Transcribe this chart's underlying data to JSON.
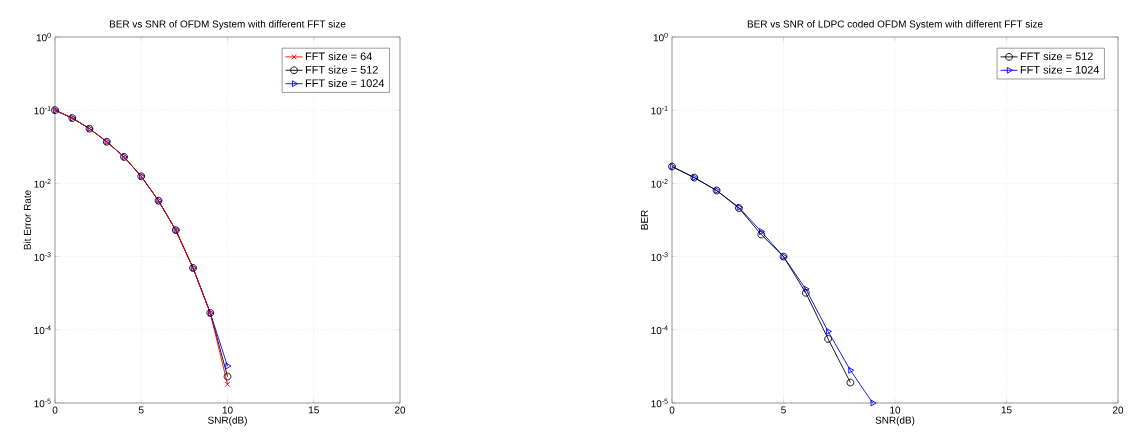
{
  "chart_data": [
    {
      "type": "line",
      "title": "BER vs SNR of OFDM System with different FFT size",
      "xlabel": "SNR(dB)",
      "ylabel": "Bit Error Rate",
      "x": [
        0,
        1,
        2,
        3,
        4,
        5,
        6,
        7,
        8,
        9,
        10
      ],
      "series": [
        {
          "name": "FFT size = 64",
          "color": "#ff0000",
          "marker": "cross",
          "values": [
            0.1,
            0.078,
            0.056,
            0.037,
            0.023,
            0.0125,
            0.0058,
            0.0023,
            0.0007,
            0.00017,
            1.8e-05
          ]
        },
        {
          "name": "FFT size = 512",
          "color": "#000000",
          "marker": "circle",
          "values": [
            0.1,
            0.078,
            0.056,
            0.037,
            0.023,
            0.0125,
            0.0058,
            0.0023,
            0.0007,
            0.00017,
            2.3e-05
          ]
        },
        {
          "name": "FFT size = 1024",
          "color": "#0000ff",
          "marker": "triangle",
          "values": [
            0.1,
            0.078,
            0.056,
            0.037,
            0.023,
            0.0125,
            0.0058,
            0.0023,
            0.0007,
            0.00017,
            3.2e-05
          ]
        }
      ],
      "xlim": [
        0,
        20
      ],
      "ylim": [
        1e-05,
        1
      ],
      "xticks": [
        0,
        5,
        10,
        15,
        20
      ],
      "yticks": [
        {
          "value": 1e-05,
          "label": "10$^{-5}$"
        },
        {
          "value": 0.0001,
          "label": "10$^{-4}$"
        },
        {
          "value": 0.001,
          "label": "10$^{-3}$"
        },
        {
          "value": 0.01,
          "label": "10$^{-2}$"
        },
        {
          "value": 0.1,
          "label": "10$^{-1}$"
        },
        {
          "value": 1,
          "label": "10$^{0}$"
        }
      ],
      "log": "y",
      "grid": true,
      "legend": "top right"
    },
    {
      "type": "line",
      "title": "BER vs SNR of LDPC coded OFDM System with different FFT size",
      "xlabel": "SNR(dB)",
      "ylabel": "BER",
      "series": [
        {
          "name": "FFT size = 512",
          "color": "#000000",
          "marker": "circle",
          "x": [
            0,
            1,
            2,
            3,
            4,
            5,
            6,
            7,
            8
          ],
          "values": [
            0.017,
            0.012,
            0.008,
            0.0046,
            0.002,
            0.001,
            0.00032,
            7.5e-05,
            1.9e-05
          ]
        },
        {
          "name": "FFT size = 1024",
          "color": "#0000ff",
          "marker": "triangle",
          "x": [
            0,
            1,
            2,
            3,
            4,
            5,
            6,
            7,
            8,
            9
          ],
          "values": [
            0.017,
            0.012,
            0.008,
            0.0047,
            0.0022,
            0.001,
            0.00036,
            9.5e-05,
            2.8e-05,
            1e-05
          ]
        }
      ],
      "xlim": [
        0,
        20
      ],
      "ylim": [
        1e-05,
        1
      ],
      "xticks": [
        0,
        5,
        10,
        15,
        20
      ],
      "yticks": [
        {
          "value": 1e-05,
          "label": "10$^{-5}$"
        },
        {
          "value": 0.0001,
          "label": "10$^{-4}$"
        },
        {
          "value": 0.001,
          "label": "10$^{-3}$"
        },
        {
          "value": 0.01,
          "label": "10$^{-2}$"
        },
        {
          "value": 0.1,
          "label": "10$^{-1}$"
        },
        {
          "value": 1,
          "label": "10$^{0}$"
        }
      ],
      "log": "y",
      "grid": true,
      "legend": "top right"
    }
  ]
}
